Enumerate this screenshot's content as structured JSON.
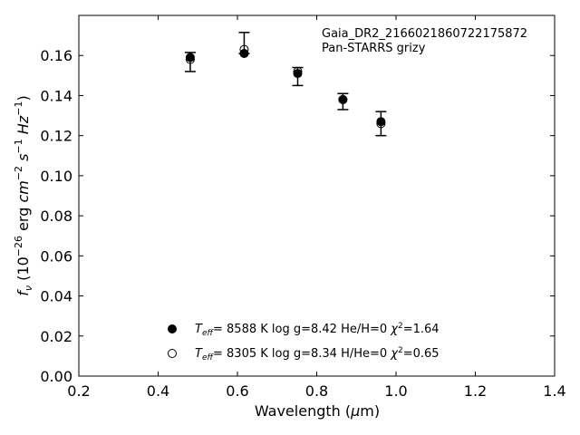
{
  "chart_data": {
    "type": "scatter",
    "xlabel": "Wavelength (µm)",
    "ylabel": "f_ν (10^-26 erg cm^-2 s^-1 Hz^-1)",
    "xlim": [
      0.2,
      1.4
    ],
    "ylim": [
      0.0,
      0.18
    ],
    "xticks": [
      0.2,
      0.4,
      0.6,
      0.8,
      1.0,
      1.2,
      1.4
    ],
    "xtick_labels": [
      "0.2",
      "0.4",
      "0.6",
      "0.8",
      "1.0",
      "1.2",
      "1.4"
    ],
    "yticks": [
      0.0,
      0.02,
      0.04,
      0.06,
      0.08,
      0.1,
      0.12,
      0.14,
      0.16
    ],
    "ytick_labels": [
      "0.00",
      "0.02",
      "0.04",
      "0.06",
      "0.08",
      "0.10",
      "0.12",
      "0.14",
      "0.16"
    ],
    "grid": false,
    "annotation": {
      "object_name": "Gaia_DR2_2166021860722175872",
      "survey": "Pan-STARRS grizy"
    },
    "observed": {
      "x": [
        0.481,
        0.617,
        0.752,
        0.866,
        0.962
      ],
      "y": [
        0.1565,
        0.1665,
        0.1495,
        0.137,
        0.126
      ],
      "yerr_low": [
        0.0045,
        0.0055,
        0.0045,
        0.004,
        0.006
      ],
      "yerr_high": [
        0.005,
        0.005,
        0.0045,
        0.004,
        0.006
      ]
    },
    "series": [
      {
        "legend": "T_eff=  8588 K  log g=8.42  He/H=0  χ²=1.64",
        "marker": "filled-circle",
        "x": [
          0.481,
          0.617,
          0.752,
          0.866,
          0.962
        ],
        "y": [
          0.159,
          0.161,
          0.151,
          0.138,
          0.127
        ]
      },
      {
        "legend": "T_eff=  8305 K  log g=8.34  H/He=0  χ²=0.65",
        "marker": "open-circle",
        "x": [
          0.481,
          0.617,
          0.752,
          0.866,
          0.962
        ],
        "y": [
          0.158,
          0.163,
          0.152,
          0.138,
          0.126
        ]
      }
    ],
    "legend_placement": "lower-center"
  }
}
